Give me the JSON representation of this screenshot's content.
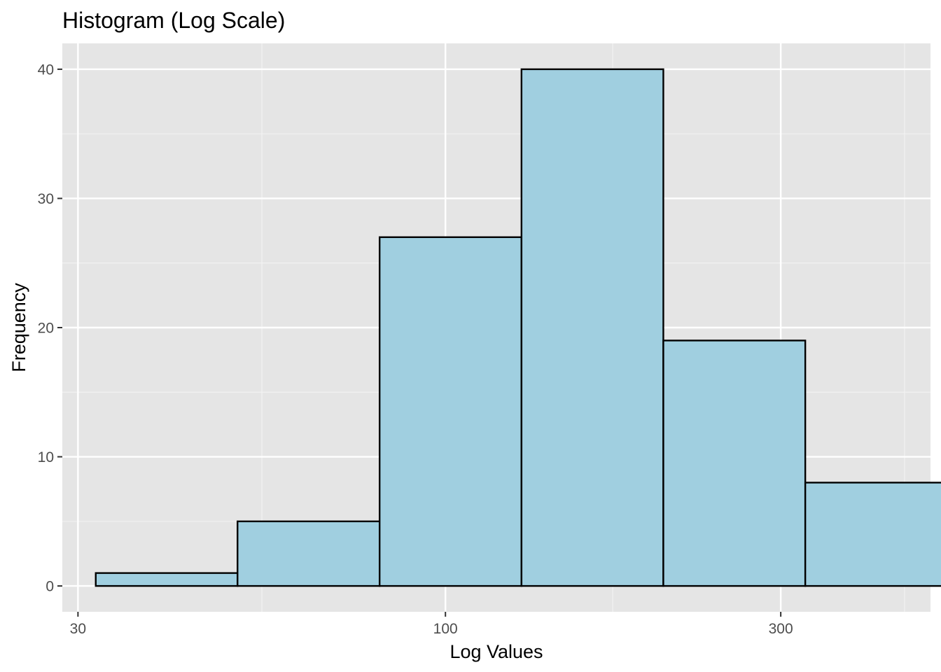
{
  "chart_data": {
    "type": "bar",
    "title": "Histogram (Log Scale)",
    "xlabel": "Log Values",
    "ylabel": "Frequency",
    "x_scale": "log10",
    "xlim": [
      28.5,
      490
    ],
    "ylim": [
      -2,
      42
    ],
    "x_ticks": [
      {
        "value": 30,
        "label": "30"
      },
      {
        "value": 100,
        "label": "100"
      },
      {
        "value": 300,
        "label": "300"
      }
    ],
    "x_minor_ticks": [
      54.8,
      173,
      450
    ],
    "y_ticks": [
      {
        "value": 0,
        "label": "0"
      },
      {
        "value": 10,
        "label": "10"
      },
      {
        "value": 20,
        "label": "20"
      },
      {
        "value": 30,
        "label": "30"
      },
      {
        "value": 40,
        "label": "40"
      }
    ],
    "y_minor_ticks": [
      5,
      15,
      25,
      35
    ],
    "bins": [
      {
        "x0": 31.8,
        "x1": 50.6,
        "count": 1
      },
      {
        "x0": 50.6,
        "x1": 80.6,
        "count": 5
      },
      {
        "x0": 80.6,
        "x1": 128.3,
        "count": 27
      },
      {
        "x0": 128.3,
        "x1": 204.2,
        "count": 40
      },
      {
        "x0": 204.2,
        "x1": 325.1,
        "count": 19
      },
      {
        "x0": 325.1,
        "x1": 517.5,
        "count": 8
      }
    ],
    "grid": true,
    "colors": {
      "panel_background": "#e5e5e5",
      "grid_major": "#ffffff",
      "grid_minor": "#f2f2f2",
      "bar_fill": "#a0cfe0",
      "bar_stroke": "#000000",
      "tick_color": "#333333"
    }
  }
}
